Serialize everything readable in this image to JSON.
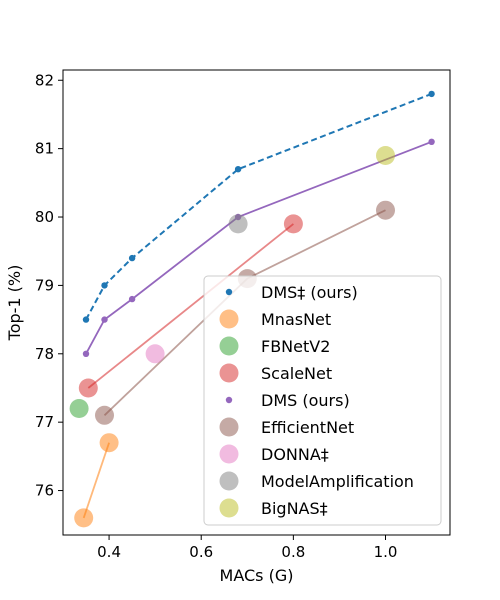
{
  "chart_data": {
    "type": "scatter",
    "xlabel": "MACs (G)",
    "ylabel": "Top-1 (%)",
    "xlim": [
      0.3,
      1.14
    ],
    "ylim": [
      75.35,
      82.15
    ],
    "xticks": [
      0.4,
      0.6,
      0.8,
      1.0
    ],
    "xtick_labels": [
      "0.4",
      "0.6",
      "0.8",
      "1.0"
    ],
    "yticks": [
      76,
      77,
      78,
      79,
      80,
      81,
      82
    ],
    "ytick_labels": [
      "76",
      "77",
      "78",
      "79",
      "80",
      "81",
      "82"
    ],
    "grid": false,
    "legend_position": "lower-right",
    "series": [
      {
        "name": "DMS‡ (ours)",
        "color": "#1f77b4",
        "marker": "small",
        "line": "dashed",
        "points": [
          [
            0.35,
            78.5
          ],
          [
            0.39,
            79.0
          ],
          [
            0.45,
            79.4
          ],
          [
            0.68,
            80.7
          ],
          [
            1.1,
            81.8
          ]
        ]
      },
      {
        "name": "MnasNet",
        "color": "#ff7f0e",
        "marker": "large",
        "line": "solid",
        "points": [
          [
            0.345,
            75.6
          ],
          [
            0.4,
            76.7
          ]
        ]
      },
      {
        "name": "FBNetV2",
        "color": "#2ca02c",
        "marker": "large",
        "line": "none",
        "points": [
          [
            0.335,
            77.2
          ]
        ]
      },
      {
        "name": "ScaleNet",
        "color": "#d62728",
        "marker": "large",
        "line": "solid",
        "points": [
          [
            0.355,
            77.5
          ],
          [
            0.8,
            79.9
          ]
        ]
      },
      {
        "name": "DMS (ours)",
        "color": "#9467bd",
        "marker": "small",
        "line": "solid",
        "points": [
          [
            0.35,
            78.0
          ],
          [
            0.39,
            78.5
          ],
          [
            0.45,
            78.8
          ],
          [
            0.68,
            80.0
          ],
          [
            1.1,
            81.1
          ]
        ]
      },
      {
        "name": "EfficientNet",
        "color": "#8c564b",
        "marker": "large",
        "line": "solid",
        "points": [
          [
            0.39,
            77.1
          ],
          [
            0.7,
            79.1
          ],
          [
            1.0,
            80.1
          ]
        ]
      },
      {
        "name": "DONNA‡",
        "color": "#e377c2",
        "marker": "large",
        "line": "none",
        "points": [
          [
            0.5,
            78.0
          ]
        ]
      },
      {
        "name": "ModelAmplification",
        "color": "#7f7f7f",
        "marker": "large",
        "line": "none",
        "points": [
          [
            0.68,
            79.9
          ]
        ]
      },
      {
        "name": "BigNAS‡",
        "color": "#bcbd22",
        "marker": "large",
        "line": "none",
        "points": [
          [
            1.0,
            80.9
          ]
        ]
      }
    ]
  }
}
